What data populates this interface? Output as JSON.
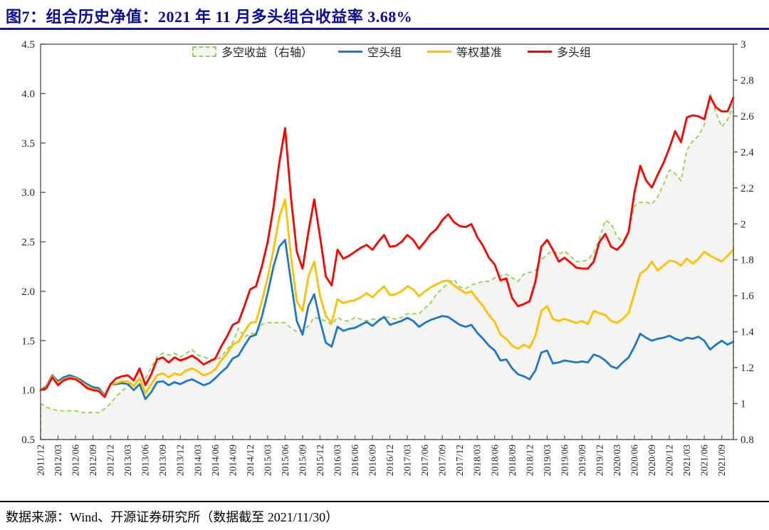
{
  "page": {
    "title": "图7：组合历史净值：2021 年 11 月多头组合收益率 3.68%",
    "footer": "数据来源：Wind、开源证券研究所（数据截至 2021/11/30）"
  },
  "colors": {
    "title_text": "#0a0a96",
    "title_rule": "#14148c",
    "frame": "#595959",
    "tick_text": "#262626",
    "area_fill": "#f4f4f2"
  },
  "chart_data": {
    "type": "line",
    "title": "组合历史净值",
    "legend_position": "top-center",
    "grid": false,
    "x_tick_every": 3,
    "left_axis": {
      "min": 0.5,
      "max": 4.5,
      "tick_step": 0.5,
      "tick_labels": [
        "0.5",
        "1.0",
        "1.5",
        "2.0",
        "2.5",
        "3.0",
        "3.5",
        "4.0",
        "4.5"
      ]
    },
    "right_axis": {
      "min": 0.8,
      "max": 3.0,
      "tick_step": 0.2,
      "tick_labels": [
        "0.8",
        "1",
        "1.2",
        "1.4",
        "1.6",
        "1.8",
        "2",
        "2.2",
        "2.4",
        "2.6",
        "2.8",
        "3"
      ]
    },
    "x": [
      "2011/12",
      "2012/01",
      "2012/02",
      "2012/03",
      "2012/04",
      "2012/05",
      "2012/06",
      "2012/07",
      "2012/08",
      "2012/09",
      "2012/10",
      "2012/11",
      "2012/12",
      "2013/01",
      "2013/02",
      "2013/03",
      "2013/04",
      "2013/05",
      "2013/06",
      "2013/07",
      "2013/08",
      "2013/09",
      "2013/10",
      "2013/11",
      "2013/12",
      "2014/01",
      "2014/02",
      "2014/03",
      "2014/04",
      "2014/05",
      "2014/06",
      "2014/07",
      "2014/08",
      "2014/09",
      "2014/10",
      "2014/11",
      "2014/12",
      "2015/01",
      "2015/02",
      "2015/03",
      "2015/04",
      "2015/05",
      "2015/06",
      "2015/07",
      "2015/08",
      "2015/09",
      "2015/10",
      "2015/11",
      "2015/12",
      "2016/01",
      "2016/02",
      "2016/03",
      "2016/04",
      "2016/05",
      "2016/06",
      "2016/07",
      "2016/08",
      "2016/09",
      "2016/10",
      "2016/11",
      "2016/12",
      "2017/01",
      "2017/02",
      "2017/03",
      "2017/04",
      "2017/05",
      "2017/06",
      "2017/07",
      "2017/08",
      "2017/09",
      "2017/10",
      "2017/11",
      "2017/12",
      "2018/01",
      "2018/02",
      "2018/03",
      "2018/04",
      "2018/05",
      "2018/06",
      "2018/07",
      "2018/08",
      "2018/09",
      "2018/10",
      "2018/11",
      "2018/12",
      "2019/01",
      "2019/02",
      "2019/03",
      "2019/04",
      "2019/05",
      "2019/06",
      "2019/07",
      "2019/08",
      "2019/09",
      "2019/10",
      "2019/11",
      "2019/12",
      "2020/01",
      "2020/02",
      "2020/03",
      "2020/04",
      "2020/05",
      "2020/06",
      "2020/07",
      "2020/08",
      "2020/09",
      "2020/10",
      "2020/11",
      "2020/12",
      "2021/01",
      "2021/02",
      "2021/03",
      "2021/04",
      "2021/05",
      "2021/06",
      "2021/07",
      "2021/08",
      "2021/09",
      "2021/10",
      "2021/11"
    ],
    "series": [
      {
        "name": "多空收益（右轴）",
        "axis": "right",
        "style": "dashed-area",
        "color": "#92D050",
        "values": [
          1.0,
          0.98,
          0.97,
          0.96,
          0.96,
          0.96,
          0.96,
          0.95,
          0.95,
          0.95,
          0.95,
          0.97,
          1.0,
          1.04,
          1.07,
          1.1,
          1.13,
          1.18,
          1.14,
          1.2,
          1.26,
          1.28,
          1.27,
          1.28,
          1.26,
          1.28,
          1.3,
          1.27,
          1.26,
          1.25,
          1.24,
          1.26,
          1.3,
          1.34,
          1.42,
          1.37,
          1.39,
          1.39,
          1.44,
          1.45,
          1.45,
          1.45,
          1.45,
          1.42,
          1.4,
          1.41,
          1.43,
          1.48,
          1.47,
          1.46,
          1.44,
          1.48,
          1.46,
          1.46,
          1.48,
          1.47,
          1.46,
          1.47,
          1.47,
          1.48,
          1.48,
          1.47,
          1.48,
          1.5,
          1.5,
          1.5,
          1.53,
          1.56,
          1.61,
          1.64,
          1.67,
          1.69,
          1.65,
          1.64,
          1.66,
          1.67,
          1.68,
          1.68,
          1.7,
          1.71,
          1.72,
          1.7,
          1.68,
          1.72,
          1.73,
          1.74,
          1.8,
          1.83,
          1.85,
          1.83,
          1.85,
          1.82,
          1.79,
          1.79,
          1.8,
          1.84,
          1.92,
          2.02,
          2.0,
          1.93,
          1.9,
          1.96,
          2.1,
          2.12,
          2.12,
          2.11,
          2.15,
          2.22,
          2.3,
          2.28,
          2.24,
          2.41,
          2.46,
          2.49,
          2.55,
          2.73,
          2.62,
          2.54,
          2.58,
          2.66
        ]
      },
      {
        "name": "空头组",
        "axis": "left",
        "style": "solid",
        "color": "#1F78C1",
        "values": [
          1.0,
          1.04,
          1.15,
          1.09,
          1.13,
          1.15,
          1.13,
          1.1,
          1.06,
          1.03,
          1.02,
          0.95,
          1.06,
          1.06,
          1.07,
          1.06,
          1.0,
          1.06,
          0.91,
          0.98,
          1.08,
          1.09,
          1.05,
          1.08,
          1.06,
          1.09,
          1.11,
          1.08,
          1.05,
          1.07,
          1.12,
          1.18,
          1.23,
          1.32,
          1.35,
          1.45,
          1.54,
          1.56,
          1.74,
          1.98,
          2.25,
          2.45,
          2.52,
          2.1,
          1.7,
          1.56,
          1.85,
          1.97,
          1.7,
          1.48,
          1.44,
          1.64,
          1.6,
          1.62,
          1.63,
          1.66,
          1.69,
          1.65,
          1.7,
          1.74,
          1.66,
          1.68,
          1.7,
          1.73,
          1.7,
          1.64,
          1.68,
          1.71,
          1.73,
          1.75,
          1.74,
          1.7,
          1.66,
          1.64,
          1.66,
          1.58,
          1.52,
          1.45,
          1.4,
          1.3,
          1.31,
          1.22,
          1.16,
          1.14,
          1.11,
          1.2,
          1.38,
          1.4,
          1.27,
          1.28,
          1.3,
          1.29,
          1.28,
          1.29,
          1.28,
          1.36,
          1.34,
          1.3,
          1.24,
          1.22,
          1.28,
          1.33,
          1.44,
          1.57,
          1.53,
          1.5,
          1.52,
          1.53,
          1.55,
          1.52,
          1.5,
          1.53,
          1.52,
          1.54,
          1.5,
          1.41,
          1.46,
          1.5,
          1.46,
          1.49
        ]
      },
      {
        "name": "等权基准",
        "axis": "left",
        "style": "solid",
        "color": "#FFC000",
        "values": [
          1.0,
          1.03,
          1.14,
          1.07,
          1.11,
          1.13,
          1.12,
          1.08,
          1.04,
          1.01,
          1.0,
          0.94,
          1.06,
          1.07,
          1.09,
          1.09,
          1.04,
          1.12,
          0.97,
          1.06,
          1.15,
          1.17,
          1.13,
          1.17,
          1.15,
          1.2,
          1.22,
          1.19,
          1.15,
          1.17,
          1.21,
          1.3,
          1.37,
          1.46,
          1.49,
          1.59,
          1.68,
          1.69,
          1.9,
          2.14,
          2.42,
          2.75,
          2.93,
          2.35,
          1.9,
          1.8,
          2.15,
          2.3,
          1.95,
          1.75,
          1.68,
          1.92,
          1.88,
          1.9,
          1.91,
          1.94,
          1.98,
          1.94,
          2.0,
          2.05,
          1.96,
          1.97,
          2.0,
          2.05,
          2.02,
          1.95,
          2.0,
          2.04,
          2.07,
          2.1,
          2.11,
          2.06,
          2.02,
          1.98,
          2.0,
          1.92,
          1.85,
          1.76,
          1.69,
          1.56,
          1.52,
          1.45,
          1.42,
          1.46,
          1.43,
          1.55,
          1.8,
          1.85,
          1.72,
          1.7,
          1.72,
          1.7,
          1.68,
          1.7,
          1.67,
          1.8,
          1.78,
          1.76,
          1.7,
          1.68,
          1.72,
          1.78,
          1.98,
          2.18,
          2.22,
          2.3,
          2.21,
          2.26,
          2.31,
          2.3,
          2.26,
          2.33,
          2.28,
          2.33,
          2.4,
          2.36,
          2.33,
          2.3,
          2.36,
          2.42
        ]
      },
      {
        "name": "多头组",
        "axis": "left",
        "style": "solid",
        "color": "#FF0000",
        "values": [
          1.0,
          1.02,
          1.13,
          1.05,
          1.1,
          1.12,
          1.11,
          1.07,
          1.02,
          1.0,
          0.99,
          0.93,
          1.06,
          1.12,
          1.14,
          1.15,
          1.1,
          1.22,
          1.05,
          1.16,
          1.31,
          1.33,
          1.28,
          1.33,
          1.3,
          1.32,
          1.35,
          1.31,
          1.26,
          1.29,
          1.32,
          1.44,
          1.54,
          1.66,
          1.69,
          1.85,
          2.02,
          2.05,
          2.25,
          2.5,
          2.85,
          3.3,
          3.65,
          2.95,
          2.4,
          2.23,
          2.6,
          2.93,
          2.55,
          2.15,
          2.06,
          2.42,
          2.33,
          2.36,
          2.4,
          2.44,
          2.47,
          2.42,
          2.5,
          2.57,
          2.45,
          2.46,
          2.5,
          2.57,
          2.52,
          2.43,
          2.5,
          2.58,
          2.63,
          2.72,
          2.78,
          2.7,
          2.66,
          2.65,
          2.68,
          2.55,
          2.46,
          2.34,
          2.27,
          2.11,
          2.13,
          1.93,
          1.85,
          1.87,
          1.9,
          2.1,
          2.45,
          2.52,
          2.42,
          2.3,
          2.34,
          2.29,
          2.24,
          2.23,
          2.23,
          2.3,
          2.5,
          2.58,
          2.45,
          2.42,
          2.48,
          2.6,
          3.0,
          3.27,
          3.12,
          3.05,
          3.18,
          3.3,
          3.45,
          3.62,
          3.51,
          3.76,
          3.78,
          3.77,
          3.74,
          3.97,
          3.86,
          3.82,
          3.82,
          3.96
        ]
      }
    ]
  }
}
